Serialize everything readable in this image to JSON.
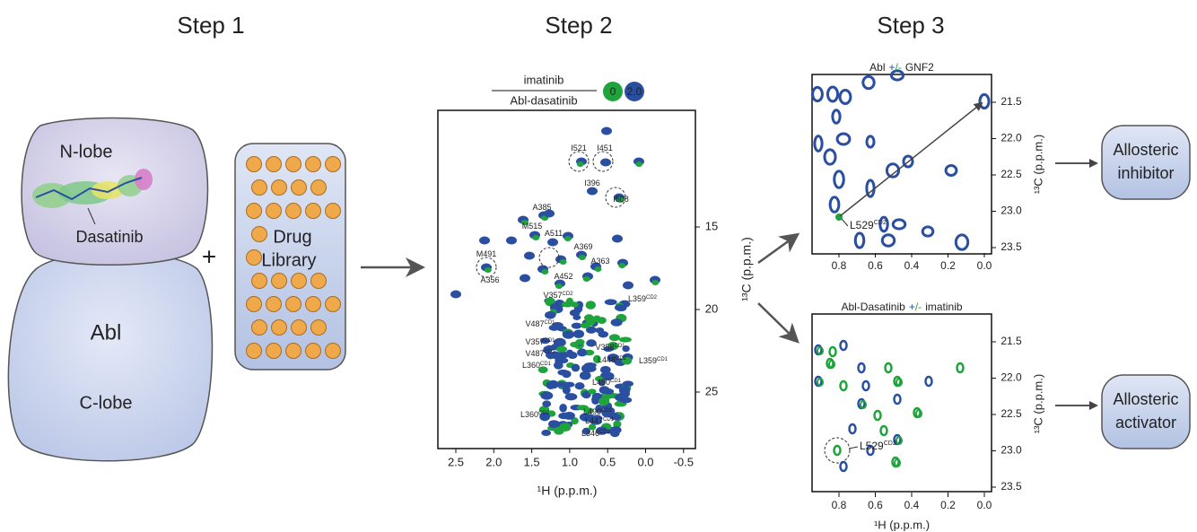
{
  "steps": [
    "Step 1",
    "Step 2",
    "Step 3"
  ],
  "step1": {
    "n_lobe": "N-lobe",
    "ligand": "Dasatinib",
    "protein": "Abl",
    "c_lobe": "C-lobe",
    "plus": "+",
    "library": [
      "Drug",
      "Library"
    ]
  },
  "spectrum2": {
    "legend_top": "imatinib",
    "legend_bottom": "Abl-dasatinib",
    "badges": [
      "0",
      "2.0"
    ],
    "xticks": [
      "2.5",
      "2.0",
      "1.5",
      "1.0",
      "0.5",
      "0.0",
      "-0.5"
    ],
    "yticks": [
      "15",
      "20",
      "25"
    ],
    "xlabel": "¹H (p.p.m.)",
    "ylabel": "¹³C (p.p.m.)",
    "peaks": [
      {
        "name": "I521"
      },
      {
        "name": "I451"
      },
      {
        "name": "I396"
      },
      {
        "name": "I508"
      },
      {
        "name": "A385"
      },
      {
        "name": "M515"
      },
      {
        "name": "A511"
      },
      {
        "name": "A369"
      },
      {
        "name": "A363"
      },
      {
        "name": "M491"
      },
      {
        "name": "A452"
      },
      {
        "name": "A356"
      },
      {
        "name": "V357",
        "sup": "CD2"
      },
      {
        "name": "L359",
        "sup": "CD2"
      },
      {
        "name": "V487",
        "sup": "CD1"
      },
      {
        "name": "V357",
        "sup": "CD1"
      },
      {
        "name": "V358",
        "sup": "CD1"
      },
      {
        "name": "V487",
        "sup": "CD2"
      },
      {
        "name": "L360",
        "sup": "CD1"
      },
      {
        "name": "L448",
        "sup": "CD2"
      },
      {
        "name": "L359",
        "sup": "CD1"
      },
      {
        "name": "L490",
        "sup": "CD1"
      },
      {
        "name": "L490",
        "sup": "CD2"
      },
      {
        "name": "L360",
        "sup": "CD2"
      },
      {
        "name": "L447",
        "sup": "CD1"
      },
      {
        "name": "L346",
        "sup": "CD2"
      }
    ]
  },
  "spectrum3a": {
    "title": [
      "Abl",
      "+",
      "/-",
      "GNF2"
    ],
    "xticks": [
      "0.8",
      "0.6",
      "0.4",
      "0.2",
      "0.0"
    ],
    "yticks": [
      "21.5",
      "22.0",
      "22.5",
      "23.0",
      "23.5"
    ],
    "ylabel": "¹³C (p.p.m.)",
    "peak": {
      "name": "L529",
      "sup": "CD2"
    }
  },
  "spectrum3b": {
    "title": [
      "Abl-Dasatinib",
      "+",
      "/-",
      "imatinib"
    ],
    "xticks": [
      "0.8",
      "0.6",
      "0.4",
      "0.2",
      "0.0"
    ],
    "yticks": [
      "21.5",
      "22.0",
      "22.5",
      "23.0",
      "23.5"
    ],
    "xlabel": "¹H (p.p.m.)",
    "ylabel": "¹³C (p.p.m.)",
    "peak": {
      "name": "L529",
      "sup": "CD2"
    }
  },
  "outcomes": [
    [
      "Allosteric",
      "inhibitor"
    ],
    [
      "Allosteric",
      "activator"
    ]
  ]
}
